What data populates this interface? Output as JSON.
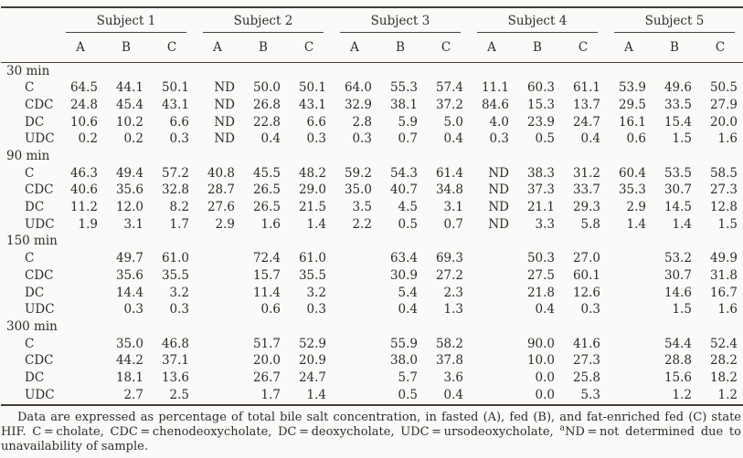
{
  "table": {
    "subjects": [
      "Subject 1",
      "Subject 2",
      "Subject 3",
      "Subject 4",
      "Subject 5"
    ],
    "state_labels": [
      "A",
      "B",
      "C"
    ],
    "sections": [
      {
        "time": "30 min",
        "rows": [
          {
            "label": "C",
            "values": [
              "64.5",
              "44.1",
              "50.1",
              "ND",
              "50.0",
              "50.1",
              "64.0",
              "55.3",
              "57.4",
              "11.1",
              "60.3",
              "61.1",
              "53.9",
              "49.6",
              "50.5"
            ]
          },
          {
            "label": "CDC",
            "values": [
              "24.8",
              "45.4",
              "43.1",
              "ND",
              "26.8",
              "43.1",
              "32.9",
              "38.1",
              "37.2",
              "84.6",
              "15.3",
              "13.7",
              "29.5",
              "33.5",
              "27.9"
            ]
          },
          {
            "label": "DC",
            "values": [
              "10.6",
              "10.2",
              "6.6",
              "ND",
              "22.8",
              "6.6",
              "2.8",
              "5.9",
              "5.0",
              "4.0",
              "23.9",
              "24.7",
              "16.1",
              "15.4",
              "20.0"
            ]
          },
          {
            "label": "UDC",
            "values": [
              "0.2",
              "0.2",
              "0.3",
              "ND",
              "0.4",
              "0.3",
              "0.3",
              "0.7",
              "0.4",
              "0.3",
              "0.5",
              "0.4",
              "0.6",
              "1.5",
              "1.6"
            ]
          }
        ]
      },
      {
        "time": "90 min",
        "rows": [
          {
            "label": "C",
            "values": [
              "46.3",
              "49.4",
              "57.2",
              "40.8",
              "45.5",
              "48.2",
              "59.2",
              "54.3",
              "61.4",
              "ND",
              "38.3",
              "31.2",
              "60.4",
              "53.5",
              "58.5"
            ]
          },
          {
            "label": "CDC",
            "values": [
              "40.6",
              "35.6",
              "32.8",
              "28.7",
              "26.5",
              "29.0",
              "35.0",
              "40.7",
              "34.8",
              "ND",
              "37.3",
              "33.7",
              "35.3",
              "30.7",
              "27.3"
            ]
          },
          {
            "label": "DC",
            "values": [
              "11.2",
              "12.0",
              "8.2",
              "27.6",
              "26.5",
              "21.5",
              "3.5",
              "4.5",
              "3.1",
              "ND",
              "21.1",
              "29.3",
              "2.9",
              "14.5",
              "12.8"
            ]
          },
          {
            "label": "UDC",
            "values": [
              "1.9",
              "3.1",
              "1.7",
              "2.9",
              "1.6",
              "1.4",
              "2.2",
              "0.5",
              "0.7",
              "ND",
              "3.3",
              "5.8",
              "1.4",
              "1.4",
              "1.5"
            ]
          }
        ]
      },
      {
        "time": "150 min",
        "rows": [
          {
            "label": "C",
            "values": [
              "",
              "49.7",
              "61.0",
              "",
              "72.4",
              "61.0",
              "",
              "63.4",
              "69.3",
              "",
              "50.3",
              "27.0",
              "",
              "53.2",
              "49.9"
            ]
          },
          {
            "label": "CDC",
            "values": [
              "",
              "35.6",
              "35.5",
              "",
              "15.7",
              "35.5",
              "",
              "30.9",
              "27.2",
              "",
              "27.5",
              "60.1",
              "",
              "30.7",
              "31.8"
            ]
          },
          {
            "label": "DC",
            "values": [
              "",
              "14.4",
              "3.2",
              "",
              "11.4",
              "3.2",
              "",
              "5.4",
              "2.3",
              "",
              "21.8",
              "12.6",
              "",
              "14.6",
              "16.7"
            ]
          },
          {
            "label": "UDC",
            "values": [
              "",
              "0.3",
              "0.3",
              "",
              "0.6",
              "0.3",
              "",
              "0.4",
              "1.3",
              "",
              "0.4",
              "0.3",
              "",
              "1.5",
              "1.6"
            ]
          }
        ]
      },
      {
        "time": "300 min",
        "rows": [
          {
            "label": "C",
            "values": [
              "",
              "35.0",
              "46.8",
              "",
              "51.7",
              "52.9",
              "",
              "55.9",
              "58.2",
              "",
              "90.0",
              "41.6",
              "",
              "54.4",
              "52.4"
            ]
          },
          {
            "label": "CDC",
            "values": [
              "",
              "44.2",
              "37.1",
              "",
              "20.0",
              "20.9",
              "",
              "38.0",
              "37.8",
              "",
              "10.0",
              "27.3",
              "",
              "28.8",
              "28.2"
            ]
          },
          {
            "label": "DC",
            "values": [
              "",
              "18.1",
              "13.6",
              "",
              "26.7",
              "24.7",
              "",
              "5.7",
              "3.6",
              "",
              "0.0",
              "25.8",
              "",
              "15.6",
              "18.2"
            ]
          },
          {
            "label": "UDC",
            "values": [
              "",
              "2.7",
              "2.5",
              "",
              "1.7",
              "1.4",
              "",
              "0.5",
              "0.4",
              "",
              "0.0",
              "5.3",
              "",
              "1.2",
              "1.2"
            ]
          }
        ]
      }
    ]
  },
  "footnote": {
    "part1": "Data are expressed as percentage of total bile salt concentration, in fasted (A), fed (B), and fat-enriched fed (C) state HIF. C = cholate, CDC = chenodeoxycholate, DC = deoxycholate, UDC = ursodeoxycholate, ",
    "sup": "a",
    "part2": "ND = not determined due to unavailability of sample."
  },
  "colors": {
    "background": "#fbfaf8",
    "text": "#2e2c29",
    "rule": "#413e3a"
  }
}
